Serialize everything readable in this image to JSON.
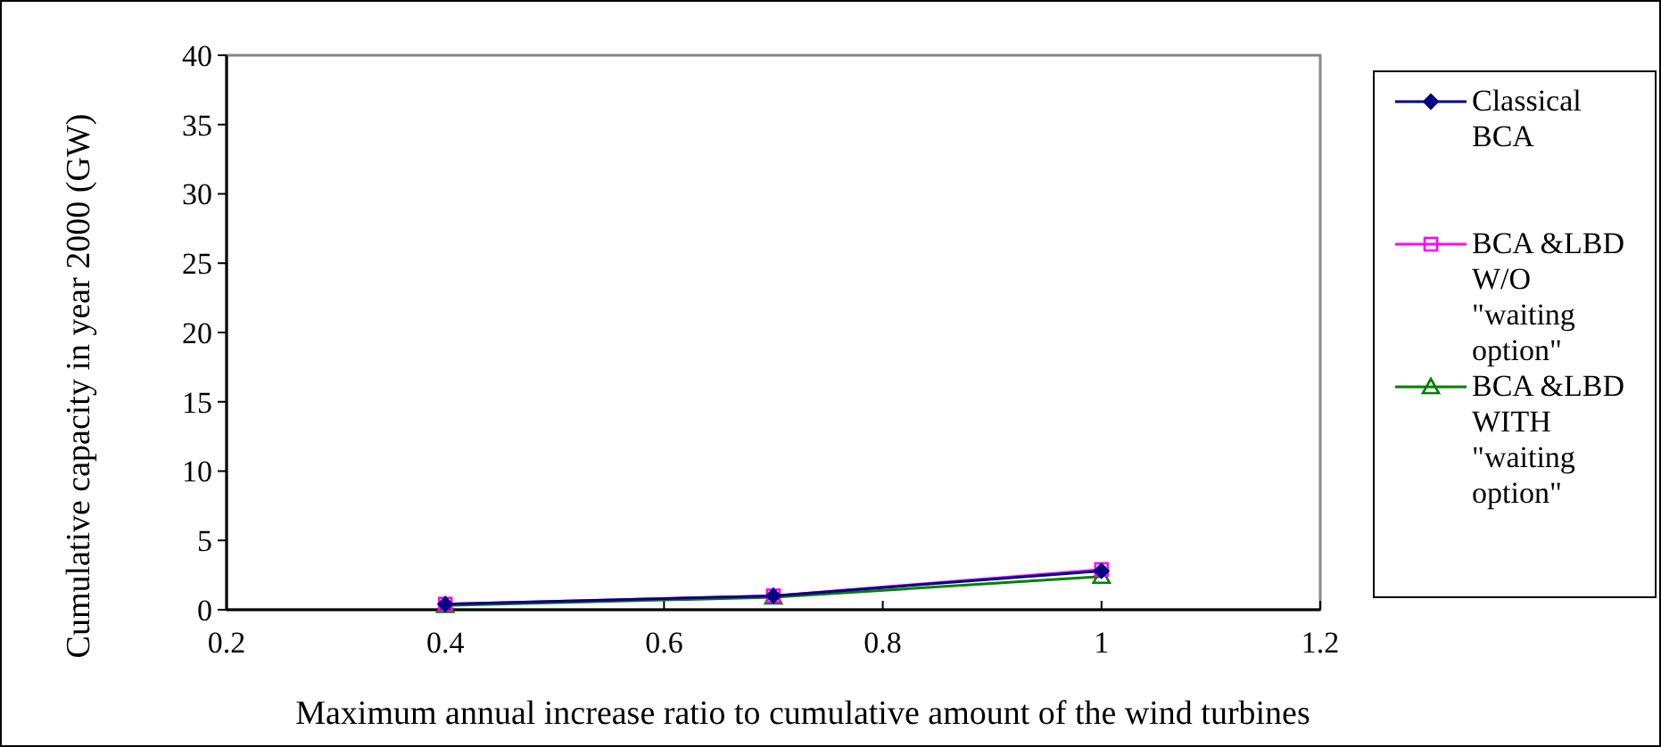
{
  "chart_data": {
    "type": "line",
    "xlabel": "Maximum annual increase ratio to cumulative amount of the wind turbines",
    "ylabel": "Cumulative capacity in year 2000 (GW)",
    "x": [
      0.4,
      0.7,
      1
    ],
    "series": [
      {
        "name": "Classical BCA",
        "color": "#000080",
        "marker": "diamond",
        "values": [
          0.4,
          1.0,
          2.8
        ]
      },
      {
        "name": "BCA &LBD W/O \"waiting option\"",
        "color": "#ff00ff",
        "marker": "square",
        "values": [
          0.4,
          1.0,
          2.9
        ]
      },
      {
        "name": "BCA &LBD WITH \"waiting option\"",
        "color": "#008000",
        "marker": "triangle",
        "values": [
          0.3,
          0.9,
          2.4
        ]
      }
    ],
    "xlim": [
      0.2,
      1.2
    ],
    "xticks": [
      0.2,
      0.4,
      0.6,
      0.8,
      1,
      1.2
    ],
    "ylim": [
      0,
      40
    ],
    "yticks": [
      0,
      5,
      10,
      15,
      20,
      25,
      30,
      35,
      40
    ],
    "grid": false,
    "legend": "right"
  }
}
